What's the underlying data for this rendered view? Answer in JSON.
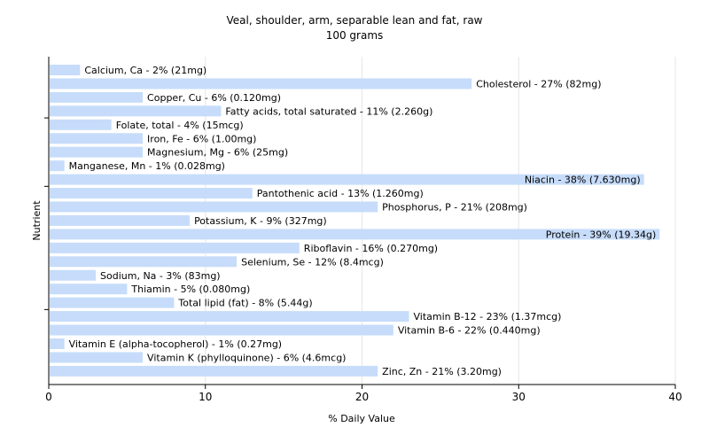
{
  "chart_data": {
    "type": "bar",
    "orientation": "horizontal",
    "title": "Veal, shoulder, arm, separable lean and fat, raw",
    "subtitle": "100 grams",
    "xlabel": "% Daily Value",
    "ylabel": "Nutrient",
    "xlim": [
      0,
      40
    ],
    "xticks": [
      "0",
      "10",
      "20",
      "30",
      "40"
    ],
    "grid": true,
    "bar_color": "#c6dcfa",
    "categories": [
      "Calcium, Ca",
      "Cholesterol",
      "Copper, Cu",
      "Fatty acids, total saturated",
      "Folate, total",
      "Iron, Fe",
      "Magnesium, Mg",
      "Manganese, Mn",
      "Niacin",
      "Pantothenic acid",
      "Phosphorus, P",
      "Potassium, K",
      "Protein",
      "Riboflavin",
      "Selenium, Se",
      "Sodium, Na",
      "Thiamin",
      "Total lipid (fat)",
      "Vitamin B-12",
      "Vitamin B-6",
      "Vitamin E (alpha-tocopherol)",
      "Vitamin K (phylloquinone)",
      "Zinc, Zn"
    ],
    "values": [
      2,
      27,
      6,
      11,
      4,
      6,
      6,
      1,
      38,
      13,
      21,
      9,
      39,
      16,
      12,
      3,
      5,
      8,
      23,
      22,
      1,
      6,
      21
    ],
    "labels": [
      "Calcium, Ca - 2% (21mg)",
      "Cholesterol - 27% (82mg)",
      "Copper, Cu - 6% (0.120mg)",
      "Fatty acids, total saturated - 11% (2.260g)",
      "Folate, total - 4% (15mcg)",
      "Iron, Fe - 6% (1.00mg)",
      "Magnesium, Mg - 6% (25mg)",
      "Manganese, Mn - 1% (0.028mg)",
      "Niacin - 38% (7.630mg)",
      "Pantothenic acid - 13% (1.260mg)",
      "Phosphorus, P - 21% (208mg)",
      "Potassium, K - 9% (327mg)",
      "Protein - 39% (19.34g)",
      "Riboflavin - 16% (0.270mg)",
      "Selenium, Se - 12% (8.4mcg)",
      "Sodium, Na - 3% (83mg)",
      "Thiamin - 5% (0.080mg)",
      "Total lipid (fat) - 8% (5.44g)",
      "Vitamin B-12 - 23% (1.37mcg)",
      "Vitamin B-6 - 22% (0.440mg)",
      "Vitamin E (alpha-tocopherol) - 1% (0.27mg)",
      "Vitamin K (phylloquinone) - 6% (4.6mcg)",
      "Zinc, Zn - 21% (3.20mg)"
    ]
  }
}
